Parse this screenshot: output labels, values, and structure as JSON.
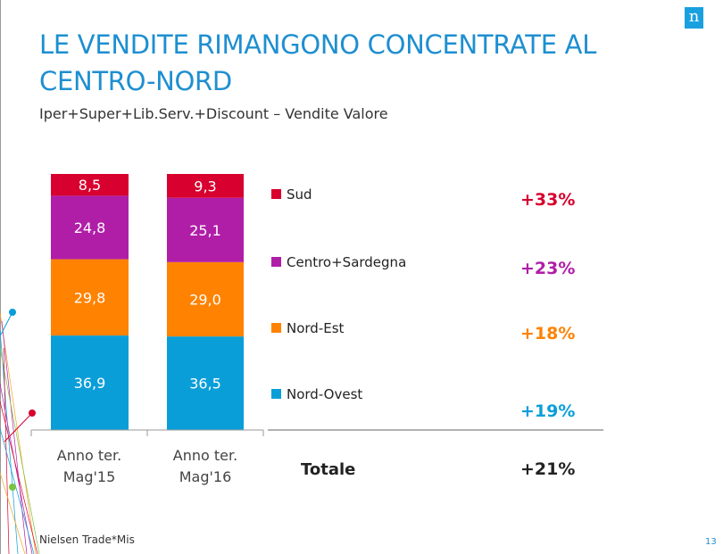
{
  "title": "LE VENDITE RIMANGONO CONCENTRATE AL CENTRO-NORD",
  "subtitle": "Iper+Super+Lib.Serv.+Discount – Vendite Valore",
  "source": "Nielsen Trade*Mis",
  "page_number": "13",
  "logo_text": "n",
  "chart_data": {
    "type": "bar",
    "stacked": true,
    "categories": [
      [
        "Anno ter.",
        "Mag'15"
      ],
      [
        "Anno ter.",
        "Mag'16"
      ]
    ],
    "series": [
      {
        "name": "Nord-Ovest",
        "values": [
          36.9,
          36.5
        ],
        "labels": [
          "36,9",
          "36,5"
        ],
        "color": "#0a9ed9",
        "growth": "+19%"
      },
      {
        "name": "Nord-Est",
        "values": [
          29.8,
          29.0
        ],
        "labels": [
          "29,8",
          "29,0"
        ],
        "color": "#ff8200",
        "growth": "+18%"
      },
      {
        "name": "Centro+Sardegna",
        "values": [
          24.8,
          25.1
        ],
        "labels": [
          "24,8",
          "25,1"
        ],
        "color": "#b01ea8",
        "growth": "+23%"
      },
      {
        "name": "Sud",
        "values": [
          8.5,
          9.3
        ],
        "labels": [
          "8,5",
          "9,3"
        ],
        "color": "#d7002e",
        "growth": "+33%"
      }
    ],
    "total": {
      "label": "Totale",
      "growth": "+21%"
    },
    "ylim": [
      0,
      100
    ],
    "grid": false,
    "legend": "right"
  }
}
